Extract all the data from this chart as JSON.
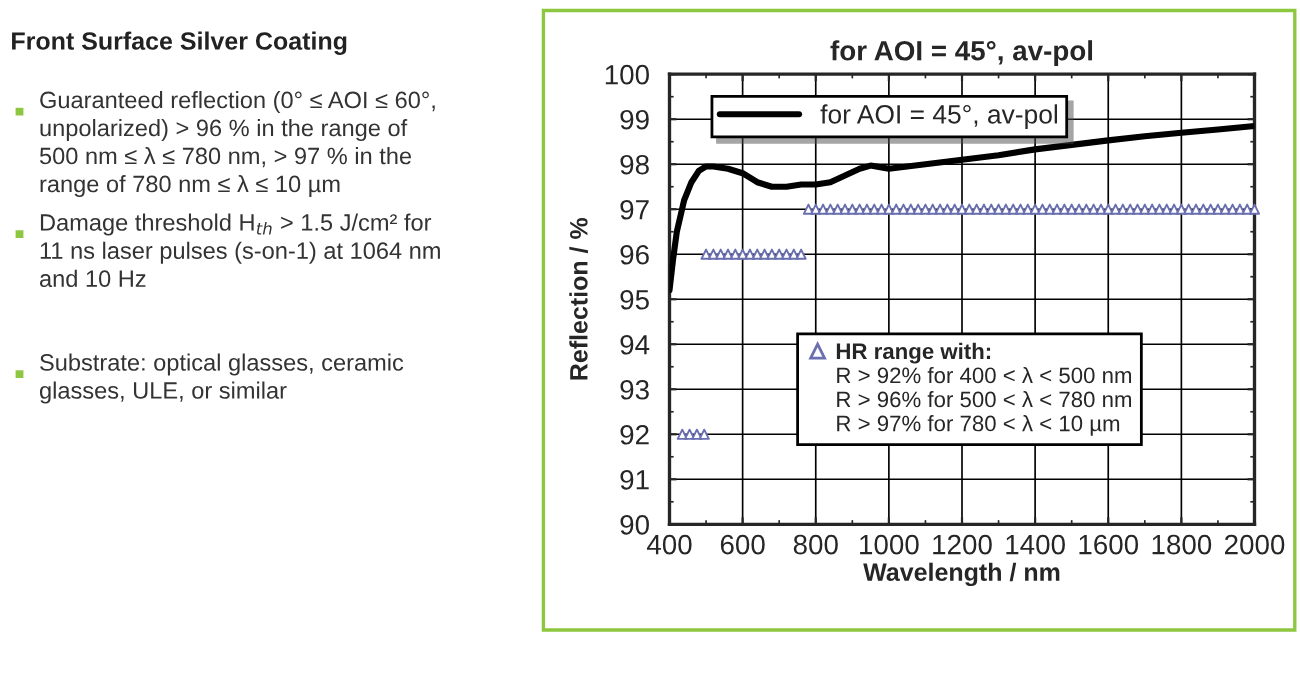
{
  "chart_data": {
    "type": "line",
    "title": "for AOI = 45°, av-pol",
    "xlabel": "Wavelength / nm",
    "ylabel": "Reflection / %",
    "xlim": [
      400,
      2000
    ],
    "xticks": [
      400,
      600,
      800,
      1000,
      1200,
      1400,
      1600,
      1800,
      2000
    ],
    "ylim": [
      90,
      100
    ],
    "yticks": [
      90,
      91,
      92,
      93,
      94,
      95,
      96,
      97,
      98,
      99,
      100
    ],
    "grid": true,
    "legend": "top left",
    "series": [
      {
        "name": "for AOI = 45°, av-pol",
        "color": "#000000",
        "marker": "none",
        "line_style": "solid",
        "x": [
          400,
          410,
          420,
          440,
          460,
          480,
          500,
          520,
          560,
          600,
          640,
          680,
          720,
          760,
          800,
          840,
          880,
          920,
          950,
          980,
          1000,
          1050,
          1100,
          1200,
          1300,
          1400,
          1500,
          1600,
          1700,
          1800,
          1900,
          2000
        ],
        "values": [
          95.2,
          95.9,
          96.5,
          97.2,
          97.6,
          97.85,
          97.95,
          97.95,
          97.9,
          97.8,
          97.6,
          97.5,
          97.5,
          97.55,
          97.55,
          97.6,
          97.75,
          97.9,
          97.97,
          97.93,
          97.9,
          97.95,
          98.0,
          98.1,
          98.2,
          98.33,
          98.43,
          98.53,
          98.62,
          98.7,
          98.77,
          98.85
        ]
      },
      {
        "name": "HR range with:",
        "color": "#6a6fb0",
        "type": "scatter",
        "marker": "triangle",
        "x": [
          435,
          455,
          475,
          495,
          500,
          520,
          540,
          560,
          580,
          600,
          620,
          640,
          660,
          680,
          700,
          720,
          740,
          760,
          780,
          800,
          820,
          840,
          860,
          880,
          900,
          920,
          940,
          960,
          980,
          1000,
          1020,
          1040,
          1060,
          1080,
          1100,
          1120,
          1140,
          1160,
          1180,
          1200,
          1220,
          1240,
          1260,
          1280,
          1300,
          1320,
          1340,
          1360,
          1380,
          1400,
          1420,
          1440,
          1460,
          1480,
          1500,
          1520,
          1540,
          1560,
          1580,
          1600,
          1620,
          1640,
          1660,
          1680,
          1700,
          1720,
          1740,
          1760,
          1780,
          1800,
          1820,
          1840,
          1860,
          1880,
          1900,
          1920,
          1940,
          1960,
          1980,
          2000
        ],
        "values": [
          92,
          92,
          92,
          92,
          96,
          96,
          96,
          96,
          96,
          96,
          96,
          96,
          96,
          96,
          96,
          96,
          96,
          96,
          97,
          97,
          97,
          97,
          97,
          97,
          97,
          97,
          97,
          97,
          97,
          97,
          97,
          97,
          97,
          97,
          97,
          97,
          97,
          97,
          97,
          97,
          97,
          97,
          97,
          97,
          97,
          97,
          97,
          97,
          97,
          97,
          97,
          97,
          97,
          97,
          97,
          97,
          97,
          97,
          97,
          97,
          97,
          97,
          97,
          97,
          97,
          97,
          97,
          97,
          97,
          97,
          97,
          97,
          97,
          97,
          97,
          97,
          97,
          97,
          97,
          97
        ]
      }
    ],
    "annotations": [
      "R > 92% for 400 < λ < 500 nm",
      "R > 96% for 500 < λ < 780 nm",
      "R > 97% for 780 < λ < 10 µm",
      "Front Surface Silver Coating",
      "Guaranteed reflection (0° ≤ AOI ≤ 60°,\nunpolarized) > 96 % in the range of\n500 nm ≤ λ ≤ 780 nm, > 97 % in the\nrange of 780 nm ≤ λ ≤ 10 µm",
      "Damage threshold H$_{th}$ > 1.5 J/cm² for\n11 ns laser pulses (s-on-1) at 1064 nm\nand 10 Hz",
      "Substrate: optical glasses, ceramic\nglasses, ULE, or similar"
    ]
  }
}
